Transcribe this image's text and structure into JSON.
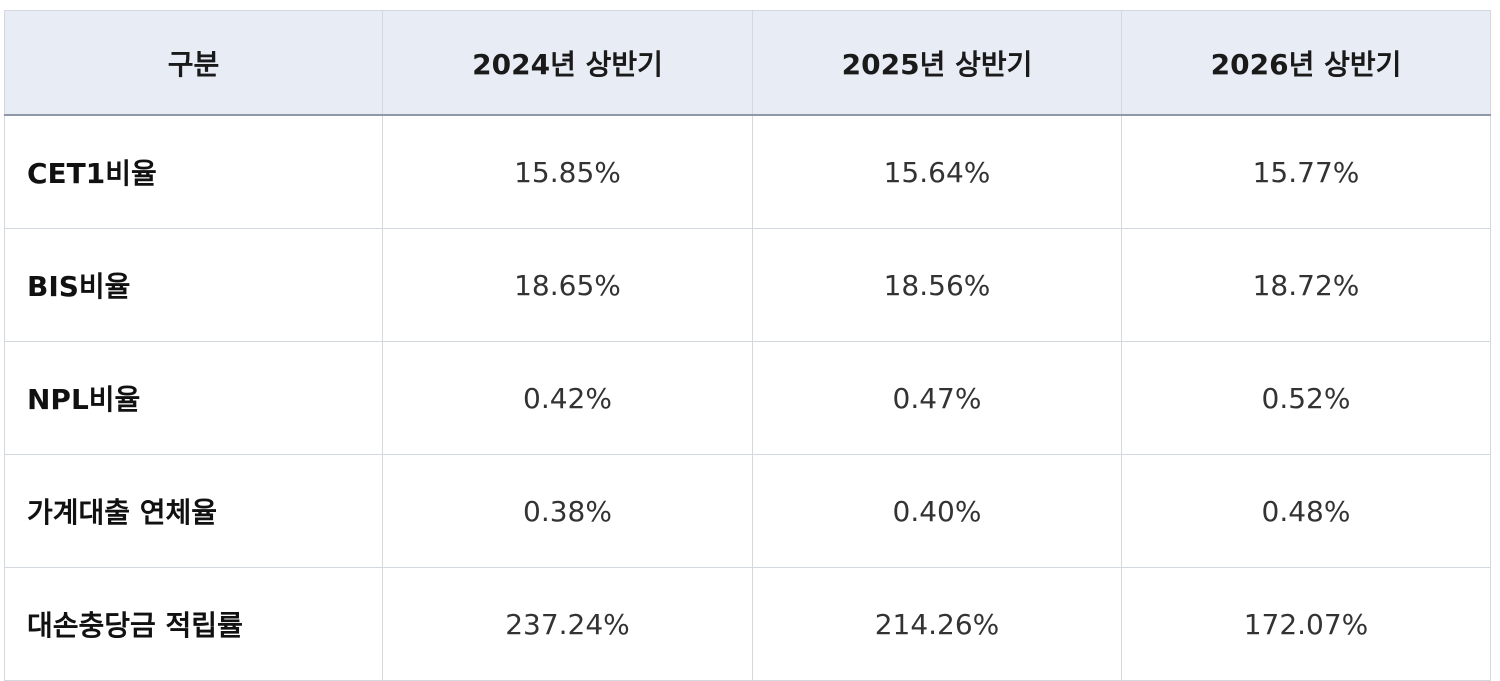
{
  "table": {
    "header": [
      "구분",
      "2024년 상반기",
      "2025년 상반기",
      "2026년 상반기"
    ],
    "rows": [
      [
        "CET1비율",
        "15.85%",
        "15.64%",
        "15.77%"
      ],
      [
        "BIS비율",
        "18.65%",
        "18.56%",
        "18.72%"
      ],
      [
        "NPL비율",
        "0.42%",
        "0.47%",
        "0.52%"
      ],
      [
        "가계대출 연체율",
        "0.38%",
        "0.40%",
        "0.48%"
      ],
      [
        "대손충당금 적립률",
        "237.24%",
        "214.26%",
        "172.07%"
      ]
    ]
  }
}
